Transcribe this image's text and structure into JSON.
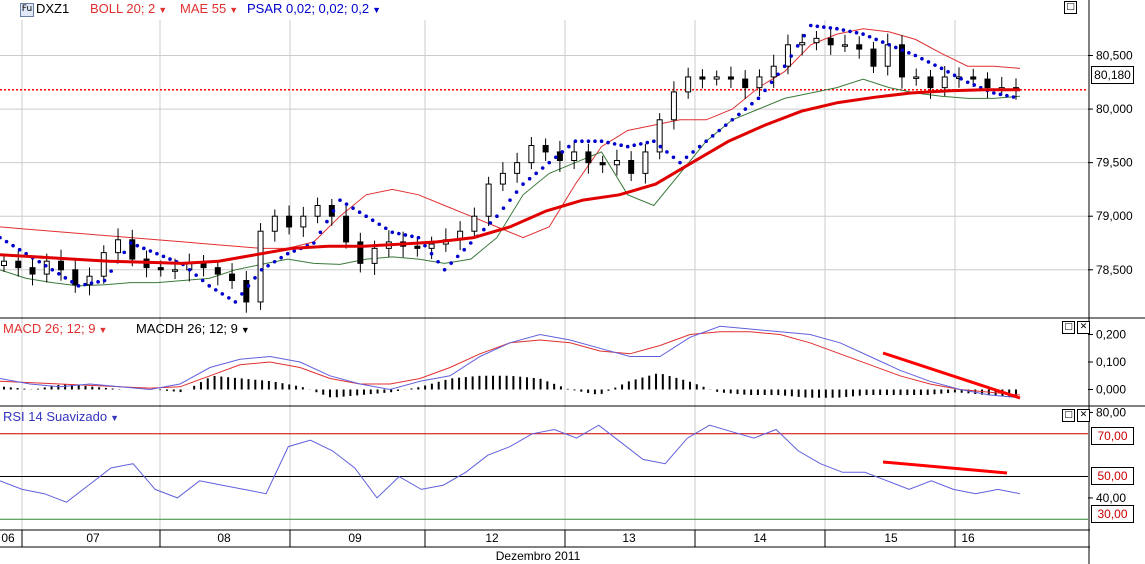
{
  "toolbar": {
    "fut_icon": "Fu",
    "symbol": "DXZ1",
    "boll": "BOLL 20; 2",
    "mae": "MAE 55",
    "psar": "PSAR 0,02; 0,02; 0,2",
    "macd": "MACD 26; 12; 9",
    "macdh": "MACDH 26; 12; 9",
    "rsi": "RSI 14 Suavizado"
  },
  "icons": {
    "dropdown": "dropdown-arrow-icon",
    "maximize": "maximize-icon",
    "close": "close-icon"
  },
  "colors": {
    "boll_upper": "#e03030",
    "boll_lower": "#3a7a3a",
    "mae": "#e00000",
    "psar": "#0000cc",
    "macd": "#e03030",
    "signal": "#6060dd",
    "rsi": "#6060dd",
    "rsi_upper": "#cc0000",
    "rsi_lower": "#2e8b2e",
    "trend": "#ff0000"
  },
  "price_axis": {
    "ticks": [
      "80,500",
      "80,000",
      "79,500",
      "79,000",
      "78,500"
    ],
    "last_price": "80,180"
  },
  "macd_axis": {
    "ticks": [
      "0,200",
      "0,100",
      "0,000"
    ]
  },
  "rsi_axis": {
    "ticks": [
      "80,00",
      "70,00",
      "50,00",
      "40,00",
      "30,00"
    ],
    "hl1": "70,00",
    "hl2": "50,00",
    "hl3": "30,00"
  },
  "x_axis": {
    "labels": [
      "06",
      "07",
      "08",
      "09",
      "12",
      "13",
      "14",
      "15",
      "16"
    ],
    "month": "Dezembro 2011"
  },
  "chart_data": [
    {
      "type": "candlestick",
      "title": "DXZ1",
      "ylim": [
        78050,
        80850
      ],
      "categories": [
        "06",
        "07",
        "08",
        "09",
        "12",
        "13",
        "14",
        "15",
        "16"
      ],
      "close_series": [
        78580,
        78520,
        78460,
        78580,
        78500,
        78360,
        78440,
        78660,
        78780,
        78600,
        78520,
        78500,
        78500,
        78560,
        78520,
        78460,
        78400,
        78200,
        78860,
        79000,
        78900,
        79000,
        79100,
        79000,
        78760,
        78560,
        78700,
        78760,
        78720,
        78700,
        78740,
        78780,
        78860,
        79000,
        79300,
        79400,
        79500,
        79660,
        79600,
        79520,
        79600,
        79500,
        79480,
        79520,
        79400,
        79600,
        79900,
        80160,
        80300,
        80280,
        80300,
        80280,
        80200,
        80300,
        80400,
        80600,
        80620,
        80660,
        80600,
        80600,
        80560,
        80400,
        80600,
        80300,
        80300,
        80200,
        80300,
        80300,
        80280,
        80200,
        80200,
        80180
      ],
      "boll_upper": [
        78900,
        78880,
        78860,
        78840,
        78820,
        78800,
        78780,
        78760,
        78740,
        78720,
        78700,
        78700,
        78760,
        79000,
        79200,
        79250,
        79200,
        79100,
        79000,
        78900,
        78800,
        78900,
        79300,
        79650,
        79800,
        79850,
        79900,
        79900,
        80000,
        80200,
        80350,
        80600,
        80700,
        80750,
        80720,
        80650,
        80520,
        80400,
        80400,
        80380
      ],
      "boll_lower": [
        78500,
        78420,
        78380,
        78350,
        78360,
        78380,
        78380,
        78400,
        78420,
        78500,
        78550,
        78600,
        78560,
        78550,
        78600,
        78620,
        78600,
        78560,
        78600,
        78800,
        79200,
        79400,
        79500,
        79600,
        79200,
        79100,
        79400,
        79700,
        79900,
        80000,
        80100,
        80150,
        80200,
        80280,
        80200,
        80150,
        80120,
        80100,
        80100,
        80120
      ],
      "mae": [
        78640,
        78620,
        78600,
        78580,
        78570,
        78560,
        78580,
        78640,
        78700,
        78720,
        78720,
        78740,
        78760,
        78800,
        78900,
        79050,
        79150,
        79200,
        79300,
        79500,
        79700,
        79850,
        79980,
        80060,
        80110,
        80150,
        80170,
        80180,
        80180
      ],
      "psar": [
        78800,
        78650,
        78500,
        78350,
        78400,
        78750,
        78650,
        78550,
        78350,
        78200,
        78500,
        78650,
        78750,
        79150,
        79000,
        78850,
        78800,
        78500,
        78750,
        79000,
        79300,
        79500,
        79700,
        79700,
        79650,
        79700,
        79500,
        79700,
        79900,
        80100,
        80400,
        80780,
        80750,
        80700,
        80600,
        80500,
        80380,
        80250,
        80150,
        80100
      ]
    },
    {
      "type": "bar+line",
      "title": "MACD 26; 12; 9",
      "ylim": [
        -0.06,
        0.26
      ],
      "macd": [
        0.04,
        0.02,
        0.01,
        0.02,
        0.01,
        0.0,
        0.02,
        0.08,
        0.11,
        0.12,
        0.1,
        0.05,
        0.02,
        0.0,
        0.03,
        0.05,
        0.12,
        0.17,
        0.2,
        0.18,
        0.15,
        0.12,
        0.12,
        0.19,
        0.23,
        0.22,
        0.21,
        0.2,
        0.17,
        0.12,
        0.07,
        0.03,
        0.0,
        -0.02,
        -0.03
      ],
      "signal": [
        0.03,
        0.025,
        0.02,
        0.015,
        0.01,
        0.005,
        0.01,
        0.05,
        0.09,
        0.1,
        0.08,
        0.04,
        0.02,
        0.02,
        0.04,
        0.08,
        0.13,
        0.17,
        0.18,
        0.17,
        0.14,
        0.13,
        0.16,
        0.2,
        0.21,
        0.21,
        0.2,
        0.17,
        0.13,
        0.09,
        0.05,
        0.02,
        0.0,
        -0.01,
        -0.02
      ],
      "histogram": [
        0.01,
        0.0,
        0.02,
        0.01,
        0.0,
        0.0,
        -0.01,
        0.05,
        0.04,
        0.03,
        0.01,
        -0.03,
        -0.02,
        -0.01,
        0.01,
        0.04,
        0.05,
        0.05,
        0.04,
        0.0,
        -0.02,
        0.03,
        0.06,
        0.03,
        -0.01,
        -0.02,
        -0.02,
        -0.03,
        -0.03,
        -0.02,
        -0.02,
        -0.02,
        -0.01,
        -0.02,
        -0.03
      ]
    },
    {
      "type": "line",
      "title": "RSI 14 Suavizado",
      "ylim": [
        25,
        83
      ],
      "hlines": [
        70,
        50,
        30
      ],
      "rsi": [
        48,
        44,
        42,
        38,
        46,
        54,
        56,
        44,
        40,
        48,
        46,
        44,
        42,
        64,
        67,
        62,
        54,
        40,
        50,
        44,
        46,
        52,
        60,
        64,
        70,
        72,
        68,
        74,
        66,
        58,
        56,
        68,
        74,
        71,
        68,
        72,
        62,
        56,
        52,
        52,
        48,
        44,
        48,
        44,
        42,
        44,
        42
      ]
    }
  ]
}
